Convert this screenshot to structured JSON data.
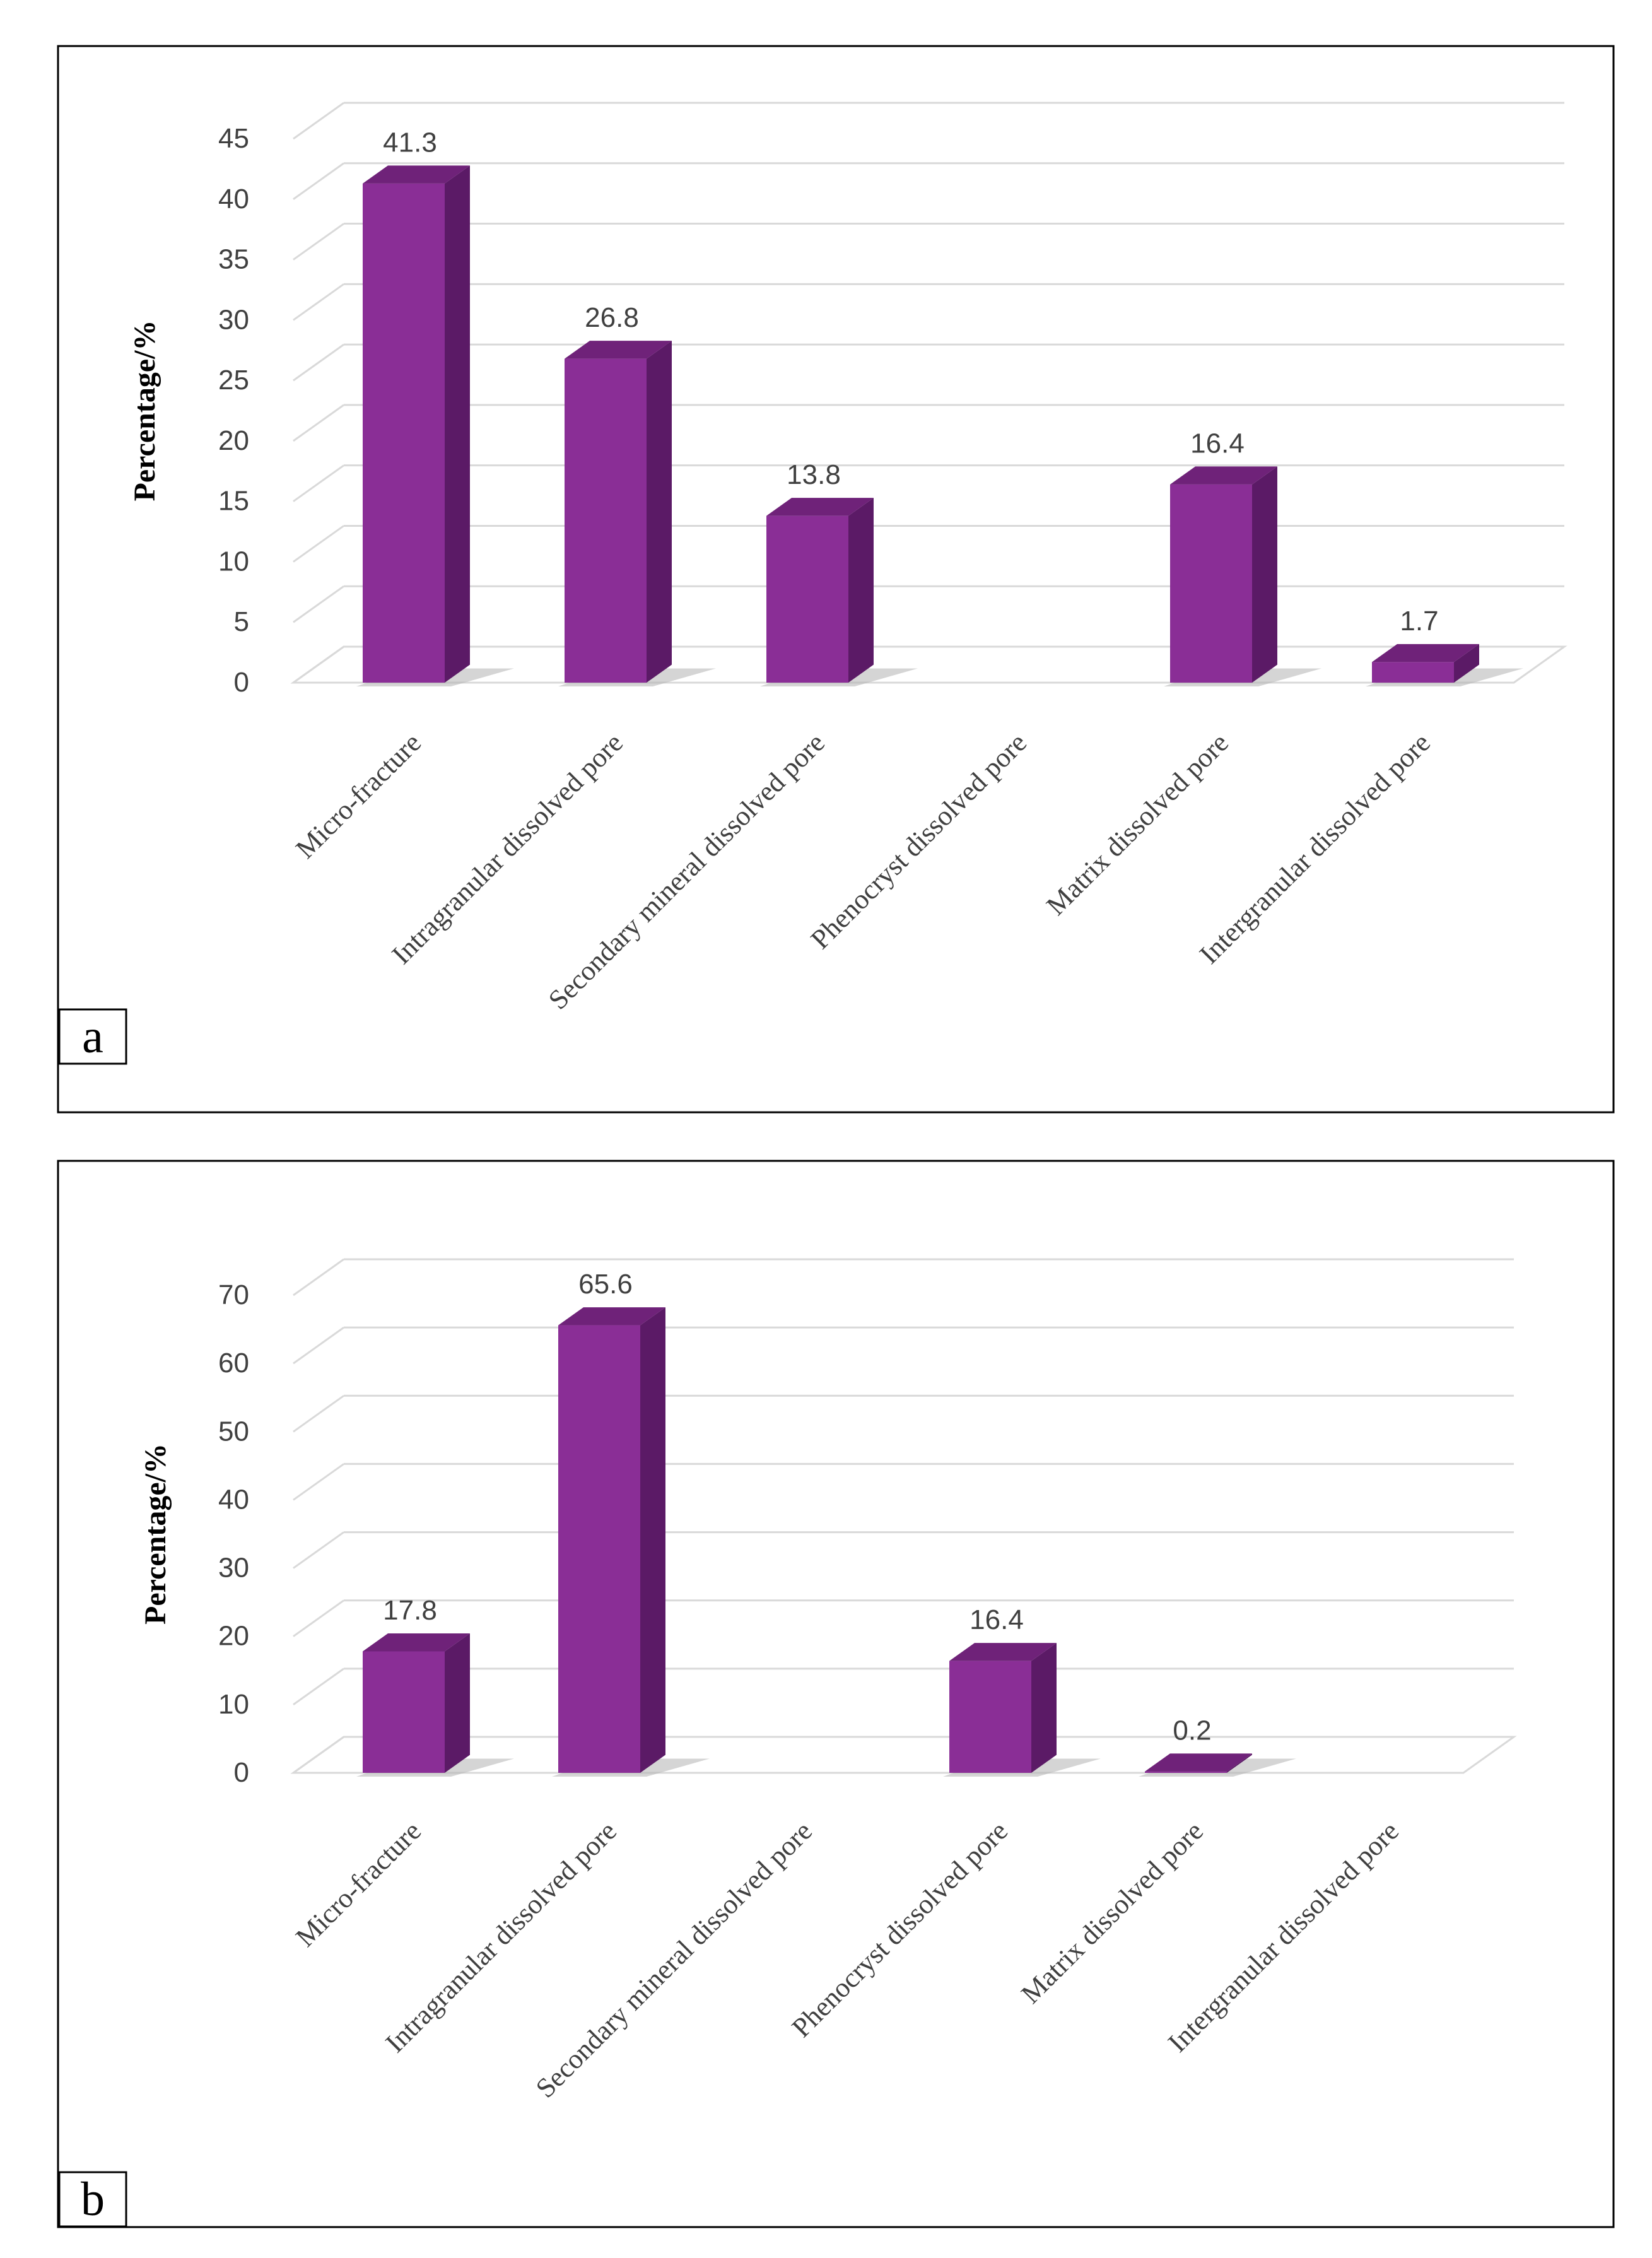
{
  "colors": {
    "bar_front": "#8a2e96",
    "bar_side": "#5b1a66",
    "bar_top": "#6f2279",
    "grid": "#d9d9d9",
    "floor": "#d9d9d9",
    "shadow": "#b3b3b3",
    "text": "#404040",
    "axis_title": "#000000",
    "frame": "#000000"
  },
  "chart_data": [
    {
      "panel_label": "a",
      "type": "bar",
      "ylabel": "Percentage/%",
      "ylim": [
        0,
        45
      ],
      "yticks": [
        0,
        5,
        10,
        15,
        20,
        25,
        30,
        35,
        40,
        45
      ],
      "categories": [
        "Micro-fracture",
        "Intragranular dissolved pore",
        "Secondary mineral dissolved pore",
        "Phenocryst  dissolved pore",
        "Matrix dissolved pore",
        "Intergranular dissolved pore"
      ],
      "values": [
        41.3,
        26.8,
        13.8,
        null,
        16.4,
        1.7
      ],
      "data_labels": [
        "41.3",
        "26.8",
        "13.8",
        "",
        "16.4",
        "1.7"
      ]
    },
    {
      "panel_label": "b",
      "type": "bar",
      "ylabel": "Percentage/%",
      "ylim": [
        0,
        70
      ],
      "yticks": [
        0,
        10,
        20,
        30,
        40,
        50,
        60,
        70
      ],
      "categories": [
        "Micro-fracture",
        "Intragranular dissolved pore",
        "Secondary mineral dissolved pore",
        "Phenocryst  dissolved pore",
        "Matrix dissolved pore",
        "Intergranular dissolved pore"
      ],
      "values": [
        17.8,
        65.6,
        null,
        16.4,
        0.2,
        null
      ],
      "data_labels": [
        "17.8",
        "65.6",
        "",
        "16.4",
        "0.2",
        ""
      ]
    }
  ]
}
